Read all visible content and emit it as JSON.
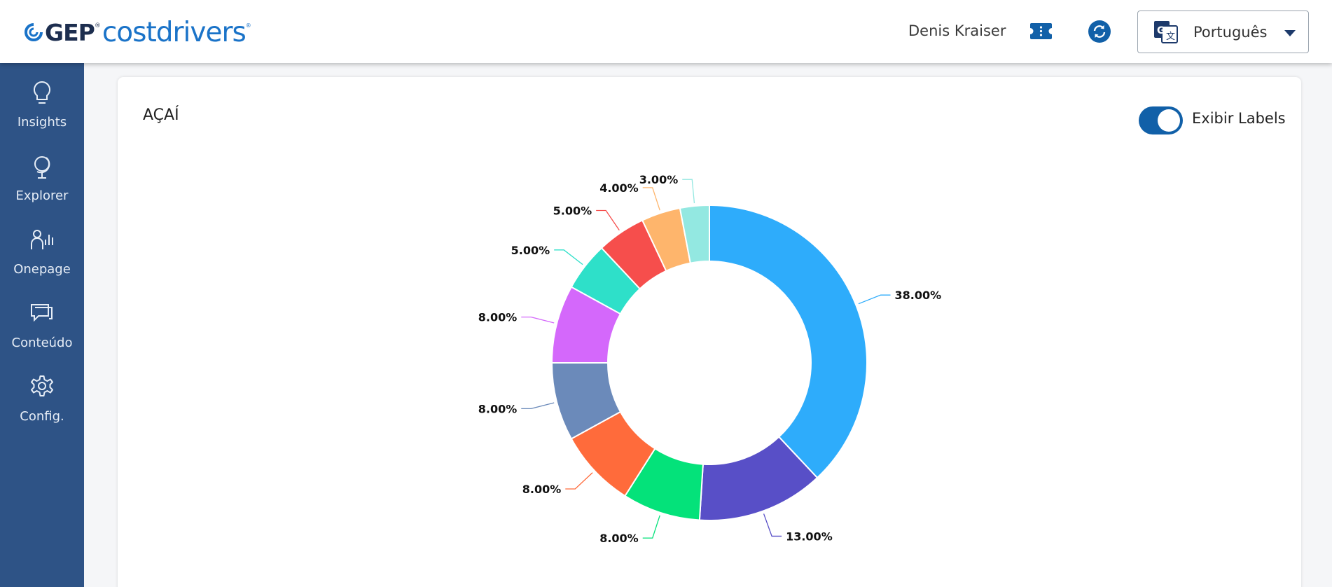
{
  "header": {
    "logo": {
      "brand": "GEP",
      "product": "costdrivers",
      "reg": "®"
    },
    "user_name": "Denis Kraiser",
    "language": "Português"
  },
  "sidebar": {
    "items": [
      {
        "label": "Insights",
        "icon": "lightbulb-icon"
      },
      {
        "label": "Explorer",
        "icon": "globe-icon"
      },
      {
        "label": "Onepage",
        "icon": "user-chart-icon"
      },
      {
        "label": "Conteúdo",
        "icon": "chat-icon"
      },
      {
        "label": "Config.",
        "icon": "gear-icon"
      }
    ]
  },
  "card": {
    "title": "AÇAÍ",
    "toggle_label": "Exibir Labels",
    "toggle_on": true
  },
  "chart_data": {
    "type": "pie",
    "donut": true,
    "values": [
      38,
      13,
      8,
      8,
      8,
      8,
      5,
      5,
      4,
      3
    ],
    "labels": [
      "38.00%",
      "13.00%",
      "8.00%",
      "8.00%",
      "8.00%",
      "8.00%",
      "5.00%",
      "5.00%",
      "4.00%",
      "3.00%"
    ],
    "colors": [
      "#2eacfb",
      "#584fc7",
      "#04e27a",
      "#ff6b3b",
      "#6b8aba",
      "#d468fb",
      "#2ee0c9",
      "#f64e4c",
      "#feb56c",
      "#93e8e1"
    ]
  }
}
